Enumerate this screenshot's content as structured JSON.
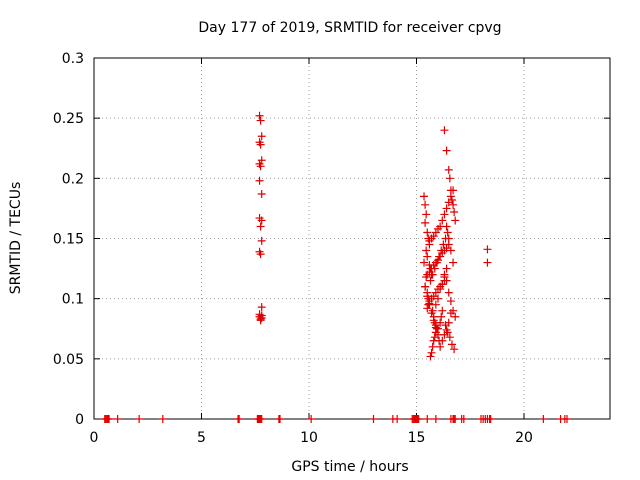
{
  "chart_data": {
    "type": "scatter",
    "title": "Day 177 of 2019, SRMTID for receiver cpvg",
    "xlabel": "GPS time / hours",
    "ylabel": "SRMTID / TECUs",
    "xlim": [
      0,
      24
    ],
    "ylim": [
      0,
      0.3
    ],
    "xticks": [
      0,
      5,
      10,
      15,
      20
    ],
    "xtick_labels": [
      "0",
      "5",
      "10",
      "15",
      "20"
    ],
    "yticks": [
      0,
      0.05,
      0.1,
      0.15,
      0.2,
      0.25,
      0.3
    ],
    "ytick_labels": [
      "0",
      "0.05",
      "0.1",
      "0.15",
      "0.2",
      "0.25",
      "0.3"
    ],
    "grid": true,
    "marker": "+",
    "color": "#e00000",
    "series": [
      {
        "name": "SRMTID",
        "x": [
          0.5,
          0.55,
          0.6,
          0.65,
          0.7,
          1.1,
          2.1,
          3.2,
          6.7,
          6.75,
          7.6,
          7.65,
          7.7,
          7.75,
          7.8,
          8.6,
          8.65,
          10.1,
          13.0,
          13.9,
          14.1,
          14.8,
          14.85,
          14.9,
          14.95,
          15.0,
          15.05,
          15.1,
          15.5,
          15.9,
          16.6,
          16.7,
          16.75,
          16.8,
          17.1,
          17.2,
          18.0,
          18.1,
          18.2,
          18.3,
          18.4,
          18.45,
          20.9,
          21.7,
          21.9,
          22.0,
          7.7,
          7.75,
          7.8,
          7.7,
          7.8,
          7.75,
          7.7,
          7.8,
          7.7,
          7.75,
          7.8,
          7.7,
          7.75,
          7.8,
          7.7,
          7.8,
          7.75,
          7.7,
          7.75,
          7.8,
          7.7,
          7.75,
          7.8,
          15.35,
          15.4,
          15.45,
          15.4,
          15.5,
          15.55,
          15.6,
          15.45,
          15.5,
          15.35,
          15.6,
          15.65,
          15.7,
          15.4,
          15.5,
          15.55,
          15.6,
          15.75,
          15.8,
          15.85,
          15.9,
          15.95,
          16.0,
          16.05,
          16.1,
          15.65,
          15.7,
          15.75,
          15.8,
          15.85,
          15.9,
          16.0,
          16.1,
          16.15,
          16.2,
          15.5,
          15.55,
          15.6,
          15.7,
          15.8,
          15.9,
          16.0,
          16.1,
          16.2,
          16.3,
          15.45,
          15.5,
          15.6,
          15.7,
          15.8,
          15.9,
          16.0,
          16.1,
          16.2,
          16.3,
          16.4,
          16.5,
          15.6,
          15.7,
          15.8,
          15.9,
          16.0,
          16.1,
          16.2,
          16.3,
          16.4,
          16.5,
          16.6,
          16.7,
          16.3,
          16.4,
          16.5,
          16.55,
          16.6,
          16.65,
          16.7,
          16.75,
          16.8,
          16.4,
          16.5,
          16.6,
          16.7,
          16.3,
          16.4,
          16.5,
          16.6,
          16.7,
          16.8,
          16.35,
          16.45,
          16.55,
          16.65,
          16.75,
          16.2,
          16.3,
          16.4,
          16.5,
          16.6,
          15.9,
          16.0,
          16.1,
          16.2,
          16.3,
          16.4,
          15.4,
          15.5,
          15.6,
          15.7,
          15.8,
          15.9,
          15.65,
          15.75,
          15.85,
          15.95,
          16.05,
          16.15,
          16.25,
          16.35,
          16.45,
          18.3,
          18.3
        ],
        "y": [
          0,
          0,
          0,
          0,
          0,
          0,
          0,
          0,
          0,
          0,
          0,
          0,
          0,
          0,
          0,
          0,
          0,
          0,
          0,
          0,
          0,
          0,
          0,
          0,
          0,
          0,
          0,
          0,
          0,
          0,
          0,
          0,
          0,
          0,
          0,
          0,
          0,
          0,
          0,
          0,
          0,
          0,
          0,
          0,
          0,
          0,
          0.252,
          0.248,
          0.235,
          0.23,
          0.215,
          0.21,
          0.198,
          0.187,
          0.167,
          0.16,
          0.148,
          0.139,
          0.137,
          0.093,
          0.087,
          0.084,
          0.082,
          0.085,
          0.083,
          0.086,
          0.212,
          0.228,
          0.165,
          0.185,
          0.178,
          0.17,
          0.163,
          0.155,
          0.15,
          0.145,
          0.14,
          0.135,
          0.13,
          0.128,
          0.125,
          0.12,
          0.11,
          0.105,
          0.1,
          0.095,
          0.09,
          0.085,
          0.08,
          0.078,
          0.075,
          0.07,
          0.065,
          0.06,
          0.052,
          0.055,
          0.06,
          0.065,
          0.068,
          0.072,
          0.075,
          0.08,
          0.085,
          0.09,
          0.092,
          0.095,
          0.098,
          0.1,
          0.102,
          0.105,
          0.108,
          0.11,
          0.112,
          0.115,
          0.118,
          0.12,
          0.122,
          0.125,
          0.128,
          0.13,
          0.132,
          0.135,
          0.138,
          0.14,
          0.142,
          0.145,
          0.148,
          0.15,
          0.152,
          0.155,
          0.158,
          0.16,
          0.165,
          0.17,
          0.175,
          0.18,
          0.185,
          0.19,
          0.24,
          0.223,
          0.207,
          0.2,
          0.19,
          0.182,
          0.178,
          0.172,
          0.165,
          0.16,
          0.15,
          0.14,
          0.13,
          0.12,
          0.115,
          0.105,
          0.098,
          0.09,
          0.085,
          0.078,
          0.072,
          0.068,
          0.062,
          0.058,
          0.065,
          0.07,
          0.074,
          0.08,
          0.088,
          0.095,
          0.1,
          0.108,
          0.112,
          0.118,
          0.125,
          0.11,
          0.102,
          0.096,
          0.088,
          0.082,
          0.076,
          0.115,
          0.12,
          0.125,
          0.13,
          0.135,
          0.14,
          0.145,
          0.15,
          0.155,
          0.141,
          0.13
        ]
      }
    ]
  }
}
